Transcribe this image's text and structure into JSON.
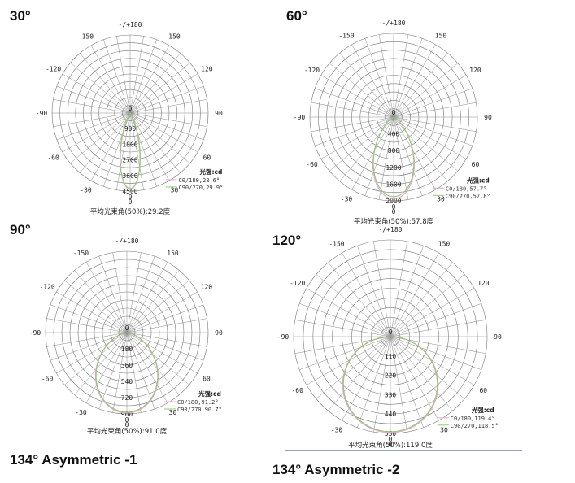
{
  "headers": [
    {
      "text": "30°"
    },
    {
      "text": "60°"
    },
    {
      "text": "90°"
    },
    {
      "text": "120°"
    },
    {
      "text": "134°  Asymmetric -1"
    },
    {
      "text": "134°  Asymmetric -2"
    }
  ],
  "colors": {
    "c0": "#e0a8c8",
    "c90": "#98c47a",
    "grid": "#777777"
  },
  "chart_data": [
    {
      "type": "polar",
      "angle_labels": [
        "-/+180",
        "-150",
        "150",
        "-120",
        "120",
        "-90",
        "90",
        "-60",
        "60",
        "-30",
        "30",
        "0"
      ],
      "radial_ticks": [
        "900",
        "1800",
        "2700",
        "3600",
        "4500"
      ],
      "rmax": 4500,
      "legend_title": "光强:cd",
      "series": [
        {
          "name": "C0/180,28.6°",
          "beam_angle": 28.6,
          "peak": 4400
        },
        {
          "name": "C90/270,29.9°",
          "beam_angle": 29.9,
          "peak": 4350
        }
      ],
      "caption": "平均光束角(50%):29.2度"
    },
    {
      "type": "polar",
      "angle_labels": [
        "-/+180",
        "-150",
        "150",
        "-120",
        "120",
        "-90",
        "90",
        "-60",
        "60",
        "-30",
        "30",
        "0"
      ],
      "radial_ticks": [
        "400",
        "800",
        "1200",
        "1600",
        "2000"
      ],
      "rmax": 2000,
      "legend_title": "光强:cd",
      "series": [
        {
          "name": "C0/180,57.7°",
          "beam_angle": 57.7,
          "peak": 1950
        },
        {
          "name": "C90/270,57.8°",
          "beam_angle": 57.8,
          "peak": 1900
        }
      ],
      "caption": "平均光束角(50%):57.8度"
    },
    {
      "type": "polar",
      "angle_labels": [
        "-/+180",
        "-150",
        "150",
        "-120",
        "120",
        "-90",
        "90",
        "-60",
        "60",
        "-30",
        "30",
        "0"
      ],
      "radial_ticks": [
        "180",
        "360",
        "540",
        "720",
        "900"
      ],
      "rmax": 900,
      "legend_title": "光强:cd",
      "series": [
        {
          "name": "C0/180,91.2°",
          "beam_angle": 91.2,
          "peak": 890
        },
        {
          "name": "C90/270,90.7°",
          "beam_angle": 90.7,
          "peak": 880
        }
      ],
      "caption": "平均光束角(50%):91.0度"
    },
    {
      "type": "polar",
      "angle_labels": [
        "-/+180",
        "-150",
        "150",
        "-120",
        "120",
        "-90",
        "90",
        "-60",
        "60",
        "-30",
        "30",
        "0"
      ],
      "radial_ticks": [
        "110",
        "220",
        "330",
        "440",
        "550"
      ],
      "rmax": 550,
      "legend_title": "光强:cd",
      "series": [
        {
          "name": "C0/180,119.4°",
          "beam_angle": 119.4,
          "peak": 545
        },
        {
          "name": "C90/270,118.5°",
          "beam_angle": 118.5,
          "peak": 540
        }
      ],
      "caption": "平均光束角(50%):119.0度"
    }
  ]
}
